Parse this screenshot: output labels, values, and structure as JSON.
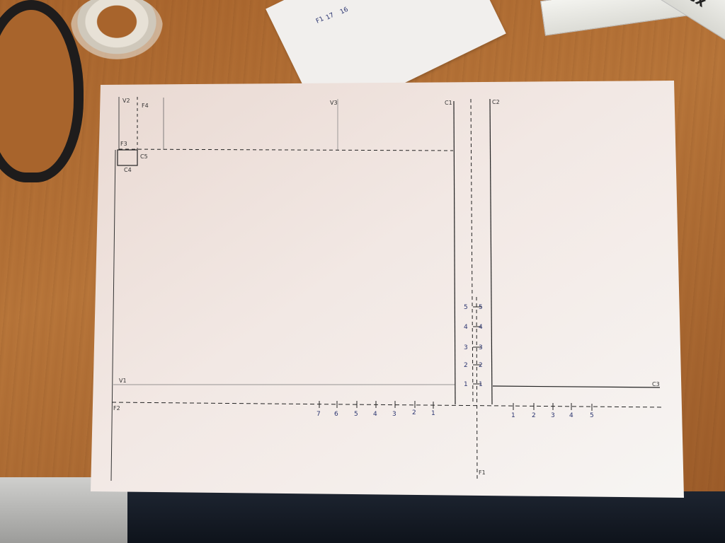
{
  "sheet": {
    "corner_labels": {
      "v2": "V2",
      "f4": "F4",
      "v3": "V3",
      "c1": "C1",
      "c2": "C2",
      "f3": "F3",
      "c5": "C5",
      "c4": "C4",
      "v1": "V1",
      "f2": "F2",
      "f1": "F1",
      "c3": "C3"
    },
    "left_axis_numbers": [
      "7",
      "6",
      "5",
      "4",
      "3",
      "2",
      "1"
    ],
    "right_axis_numbers": [
      "1",
      "2",
      "3",
      "4",
      "5"
    ],
    "vertical_left_numbers": [
      "5",
      "4",
      "3",
      "2",
      "1"
    ],
    "vertical_right_numbers": [
      "5",
      "4",
      "3",
      "2",
      "1"
    ]
  },
  "background": {
    "ruler_brand": "staflex",
    "top_paper_labels": [
      "F1",
      "17",
      "16"
    ]
  },
  "colors": {
    "table": "#a8642c",
    "paper": "#f3f0ee",
    "ink": "#222222",
    "numbers": "#2b3570"
  }
}
